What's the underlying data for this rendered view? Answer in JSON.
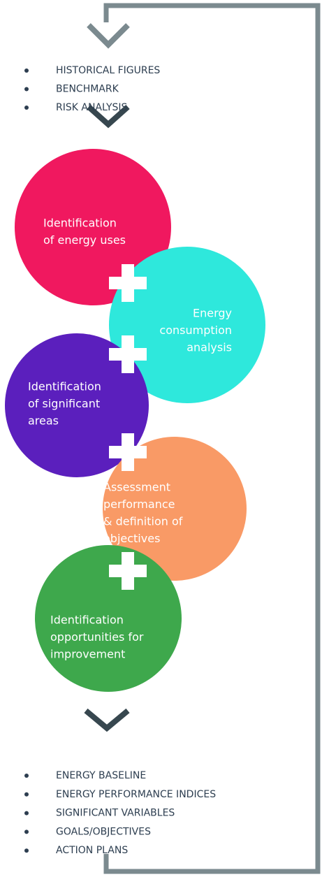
{
  "top_list": [
    "HISTORICAL FIGURES",
    "BENCHMARK",
    "RISK ANALYSIS"
  ],
  "nodes": [
    {
      "lines": [
        "Identification",
        "of energy uses"
      ]
    },
    {
      "lines": [
        "Energy",
        "consumption",
        "analysis"
      ]
    },
    {
      "lines": [
        "Identification",
        "of significant",
        "areas"
      ]
    },
    {
      "lines": [
        "Assessment",
        "performance",
        "& definition of",
        "objectives"
      ]
    },
    {
      "lines": [
        "Identification",
        "opportunities for",
        "improvement"
      ]
    }
  ],
  "bottom_list": [
    "ENERGY BASELINE",
    "ENERGY PERFORMANCE INDICES",
    "SIGNIFICANT VARIABLES",
    "GOALS/OBJECTIVES",
    "ACTION PLANS"
  ]
}
